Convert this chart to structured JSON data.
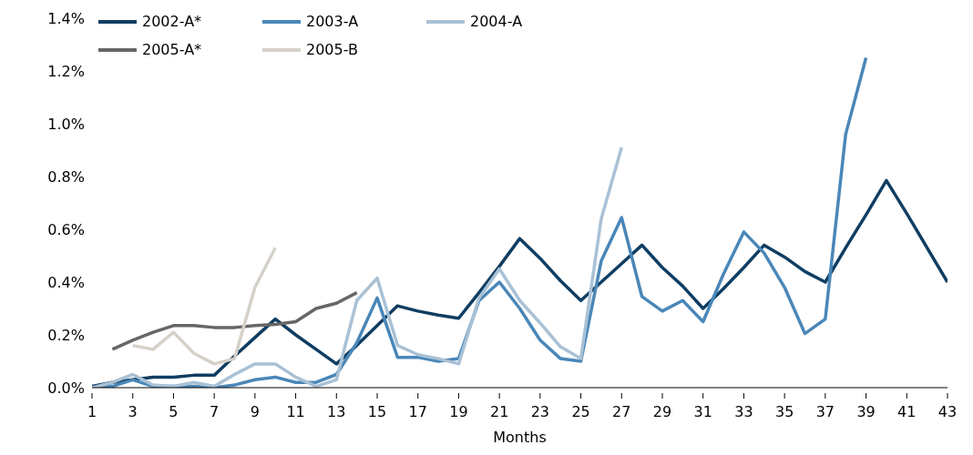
{
  "chart_data": {
    "type": "line",
    "xlabel": "Months",
    "x": [
      1,
      2,
      3,
      4,
      5,
      6,
      7,
      8,
      9,
      10,
      11,
      12,
      13,
      14,
      15,
      16,
      17,
      18,
      19,
      20,
      21,
      22,
      23,
      24,
      25,
      26,
      27,
      28,
      29,
      30,
      31,
      32,
      33,
      34,
      35,
      36,
      37,
      38,
      39,
      40,
      41,
      42,
      43
    ],
    "xlim": [
      1,
      43
    ],
    "xticks": [
      1,
      3,
      5,
      7,
      9,
      11,
      13,
      15,
      17,
      19,
      21,
      23,
      25,
      27,
      29,
      31,
      33,
      35,
      37,
      39,
      41,
      43
    ],
    "series": [
      {
        "name": "2002-A*",
        "color": "#0f3d62",
        "values": [
          0.005,
          0.02,
          0.03,
          0.04,
          0.04,
          0.047,
          0.047,
          0.12,
          0.19,
          0.26,
          0.2,
          0.145,
          0.09,
          0.16,
          0.235,
          0.31,
          0.29,
          0.275,
          0.263,
          0.36,
          0.46,
          0.565,
          0.49,
          0.405,
          0.33,
          0.4,
          0.47,
          0.54,
          0.455,
          0.385,
          0.3,
          0.375,
          0.455,
          0.54,
          0.495,
          0.44,
          0.4,
          0.53,
          0.655,
          0.785,
          0.66,
          0.53,
          0.4
        ]
      },
      {
        "name": "2003-A",
        "color": "#4a87b8",
        "values": [
          0,
          0.005,
          0.03,
          0.005,
          0.005,
          0.005,
          0,
          0.01,
          0.03,
          0.04,
          0.02,
          0.02,
          0.05,
          0.17,
          0.34,
          0.115,
          0.115,
          0.1,
          0.11,
          0.33,
          0.4,
          0.3,
          0.18,
          0.11,
          0.1,
          0.48,
          0.645,
          0.345,
          0.29,
          0.33,
          0.25,
          0.43,
          0.59,
          0.51,
          0.38,
          0.205,
          0.26,
          0.96,
          1.25,
          null,
          null,
          null,
          null
        ]
      },
      {
        "name": "2004-A",
        "color": "#a9c1d5",
        "values": [
          0,
          0.02,
          0.05,
          0.01,
          0.005,
          0.02,
          0.005,
          0.05,
          0.09,
          0.09,
          0.04,
          0.005,
          0.03,
          0.33,
          0.415,
          0.16,
          0.125,
          0.11,
          0.09,
          0.34,
          0.45,
          0.33,
          0.245,
          0.155,
          0.11,
          0.64,
          0.91,
          null,
          null,
          null,
          null,
          null,
          null,
          null,
          null,
          null,
          null,
          null,
          null,
          null,
          null,
          null,
          null
        ]
      },
      {
        "name": "2005-A*",
        "color": "#666666",
        "values": [
          null,
          0.145,
          0.18,
          0.21,
          0.235,
          0.235,
          0.228,
          0.228,
          0.235,
          0.24,
          0.25,
          0.3,
          0.32,
          0.36,
          null,
          null,
          null,
          null,
          null,
          null,
          null,
          null,
          null,
          null,
          null,
          null,
          null,
          null,
          null,
          null,
          null,
          null,
          null,
          null,
          null,
          null,
          null,
          null,
          null,
          null,
          null,
          null,
          null
        ]
      },
      {
        "name": "2005-B",
        "color": "#d5d1c8",
        "values": [
          null,
          null,
          0.16,
          0.145,
          0.21,
          0.13,
          0.09,
          0.11,
          0.38,
          0.53,
          null,
          null,
          null,
          null,
          null,
          null,
          null,
          null,
          null,
          null,
          null,
          null,
          null,
          null,
          null,
          null,
          null,
          null,
          null,
          null,
          null,
          null,
          null,
          null,
          null,
          null,
          null,
          null,
          null,
          null,
          null,
          null,
          null
        ]
      }
    ],
    "ylim": [
      0,
      1.4
    ],
    "yticks": [
      {
        "value": 0,
        "label": "0.0%"
      },
      {
        "value": 0.2,
        "label": "0.2%"
      },
      {
        "value": 0.4,
        "label": "0.4%"
      },
      {
        "value": 0.6,
        "label": "0.6%"
      },
      {
        "value": 0.8,
        "label": "0.8%"
      },
      {
        "value": 1.0,
        "label": "1.0%"
      },
      {
        "value": 1.2,
        "label": "1.2%"
      },
      {
        "value": 1.4,
        "label": "1.4%"
      }
    ],
    "grid": false,
    "legend": "top left",
    "marker": "none",
    "line_style": "solid"
  }
}
